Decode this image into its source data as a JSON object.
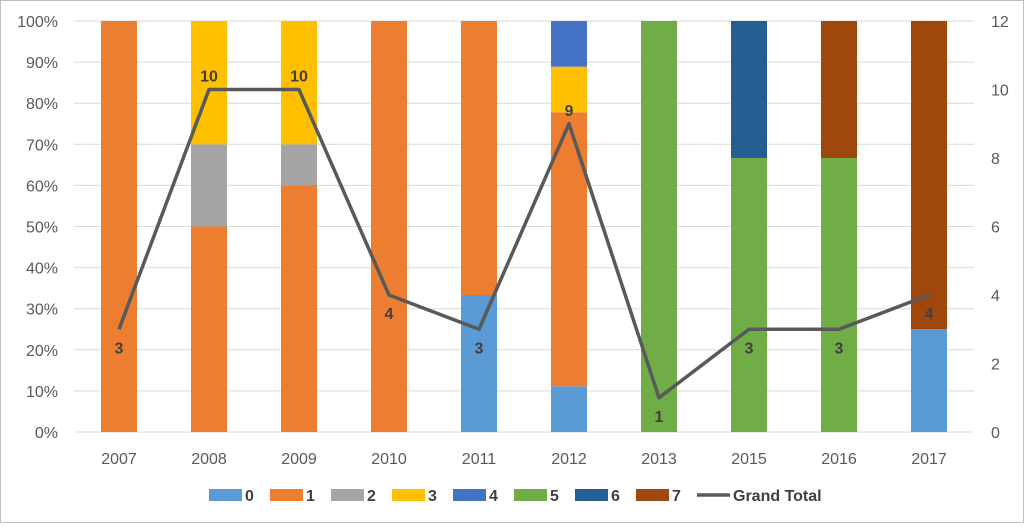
{
  "chart_data": {
    "type": "bar",
    "subtype": "100% stacked column with line on secondary axis",
    "categories": [
      "2007",
      "2008",
      "2009",
      "2010",
      "2011",
      "2012",
      "2013",
      "2015",
      "2016",
      "2017"
    ],
    "series": [
      {
        "name": "0",
        "color": "#5B9BD5",
        "values": [
          0,
          0,
          0,
          0,
          1,
          1,
          0,
          0,
          0,
          1
        ]
      },
      {
        "name": "1",
        "color": "#ED7D31",
        "values": [
          3,
          5,
          6,
          4,
          2,
          6,
          0,
          0,
          0,
          0
        ]
      },
      {
        "name": "2",
        "color": "#A5A5A5",
        "values": [
          0,
          2,
          1,
          0,
          0,
          0,
          0,
          0,
          0,
          0
        ]
      },
      {
        "name": "3",
        "color": "#FFC000",
        "values": [
          0,
          3,
          3,
          0,
          0,
          1,
          0,
          0,
          0,
          0
        ]
      },
      {
        "name": "4",
        "color": "#4472C4",
        "values": [
          0,
          0,
          0,
          0,
          0,
          1,
          0,
          0,
          0,
          0
        ]
      },
      {
        "name": "5",
        "color": "#70AD47",
        "values": [
          0,
          0,
          0,
          0,
          0,
          0,
          1,
          2,
          2,
          0
        ]
      },
      {
        "name": "6",
        "color": "#255E91",
        "values": [
          0,
          0,
          0,
          0,
          0,
          0,
          0,
          1,
          0,
          0
        ]
      },
      {
        "name": "7",
        "color": "#9E480E",
        "values": [
          0,
          0,
          0,
          0,
          0,
          0,
          0,
          0,
          1,
          3
        ]
      }
    ],
    "line_series": {
      "name": "Grand Total",
      "color": "#595959",
      "axis": "secondary",
      "values": [
        3,
        10,
        10,
        4,
        3,
        9,
        1,
        3,
        3,
        4
      ],
      "labels": [
        "3",
        "10",
        "10",
        "4",
        "3",
        "9",
        "1",
        "3",
        "3",
        "4"
      ]
    },
    "y_left": {
      "ylim": [
        0,
        1
      ],
      "ticks": [
        "0%",
        "10%",
        "20%",
        "30%",
        "40%",
        "50%",
        "60%",
        "70%",
        "80%",
        "90%",
        "100%"
      ]
    },
    "y_right": {
      "ylim": [
        0,
        12
      ],
      "ticks": [
        "0",
        "2",
        "4",
        "6",
        "8",
        "10",
        "12"
      ]
    },
    "grid": true,
    "legend": {
      "position": "bottom",
      "entries": [
        "0",
        "1",
        "2",
        "3",
        "4",
        "5",
        "6",
        "7",
        "Grand Total"
      ]
    },
    "colors": {
      "grid": "#d9d9d9",
      "axis_text": "#595959",
      "label_text": "#404040"
    }
  }
}
